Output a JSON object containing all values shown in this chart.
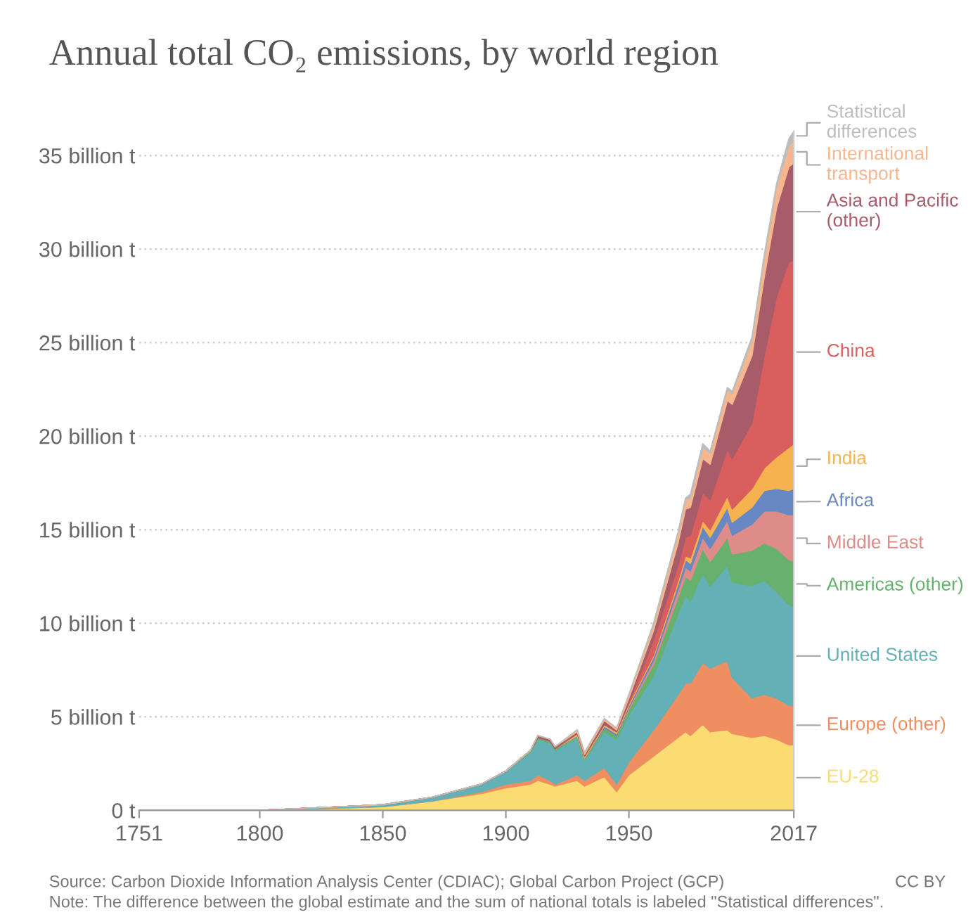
{
  "chart_data": {
    "type": "area",
    "stacked": true,
    "title": "Annual total CO₂ emissions, by world region",
    "x": [
      1751,
      1800,
      1850,
      1870,
      1890,
      1900,
      1910,
      1913,
      1918,
      1920,
      1929,
      1932,
      1940,
      1945,
      1950,
      1960,
      1970,
      1973,
      1975,
      1980,
      1983,
      1990,
      1992,
      2000,
      2005,
      2010,
      2015,
      2017
    ],
    "series": [
      {
        "name": "EU-28",
        "color": "#fbdc73",
        "values": [
          0,
          0,
          0.2,
          0.5,
          0.9,
          1.2,
          1.4,
          1.6,
          1.4,
          1.3,
          1.6,
          1.3,
          1.8,
          1.0,
          1.9,
          2.9,
          3.9,
          4.2,
          4.0,
          4.6,
          4.2,
          4.3,
          4.1,
          3.9,
          4.0,
          3.8,
          3.5,
          3.5
        ]
      },
      {
        "name": "Europe (other)",
        "color": "#ef8e60",
        "values": [
          0,
          0,
          0,
          0,
          0.1,
          0.2,
          0.2,
          0.3,
          0.2,
          0.1,
          0.3,
          0.3,
          0.5,
          0.4,
          0.7,
          1.4,
          2.3,
          2.6,
          2.8,
          3.3,
          3.4,
          3.7,
          3.0,
          2.1,
          2.2,
          2.2,
          2.1,
          2.1
        ]
      },
      {
        "name": "United States",
        "color": "#63b0b6",
        "values": [
          0,
          0,
          0.1,
          0.2,
          0.4,
          0.7,
          1.5,
          1.9,
          2.0,
          1.8,
          2.0,
          1.1,
          1.9,
          2.4,
          2.5,
          2.9,
          4.3,
          4.7,
          4.4,
          4.8,
          4.4,
          5.1,
          5.1,
          6.0,
          6.1,
          5.7,
          5.4,
          5.3
        ]
      },
      {
        "name": "Americas (other)",
        "color": "#66b16d",
        "values": [
          0,
          0,
          0,
          0,
          0,
          0,
          0.1,
          0.1,
          0.1,
          0.1,
          0.1,
          0.1,
          0.2,
          0.2,
          0.3,
          0.6,
          0.9,
          1.0,
          1.1,
          1.3,
          1.3,
          1.5,
          1.5,
          1.9,
          2.0,
          2.3,
          2.4,
          2.4
        ]
      },
      {
        "name": "Middle East",
        "color": "#de8c8a",
        "values": [
          0,
          0,
          0,
          0,
          0,
          0,
          0,
          0,
          0,
          0,
          0,
          0,
          0,
          0,
          0.1,
          0.2,
          0.4,
          0.5,
          0.5,
          0.6,
          0.7,
          0.9,
          1.0,
          1.4,
          1.7,
          2.0,
          2.4,
          2.5
        ]
      },
      {
        "name": "Africa",
        "color": "#6888c4",
        "values": [
          0,
          0,
          0,
          0,
          0,
          0,
          0,
          0,
          0,
          0,
          0,
          0,
          0.1,
          0.1,
          0.1,
          0.2,
          0.3,
          0.4,
          0.4,
          0.6,
          0.6,
          0.7,
          0.7,
          0.9,
          1.1,
          1.2,
          1.3,
          1.4
        ]
      },
      {
        "name": "India",
        "color": "#f5b24f",
        "values": [
          0,
          0,
          0,
          0,
          0,
          0,
          0,
          0,
          0,
          0,
          0.1,
          0.1,
          0.1,
          0.1,
          0.1,
          0.1,
          0.2,
          0.2,
          0.3,
          0.3,
          0.4,
          0.6,
          0.7,
          1.0,
          1.2,
          1.7,
          2.3,
          2.4
        ]
      },
      {
        "name": "China",
        "color": "#d95f5f",
        "values": [
          0,
          0,
          0,
          0,
          0,
          0,
          0,
          0,
          0,
          0,
          0,
          0,
          0,
          0,
          0.1,
          0.8,
          0.8,
          1.0,
          1.2,
          1.5,
          1.6,
          2.5,
          2.7,
          3.5,
          6.0,
          8.6,
          9.9,
          9.8
        ]
      },
      {
        "name": "Asia and Pacific (other)",
        "color": "#a85c69",
        "values": [
          0,
          0,
          0,
          0,
          0,
          0,
          0,
          0.1,
          0.1,
          0.1,
          0.1,
          0.1,
          0.2,
          0.1,
          0.2,
          0.5,
          1.2,
          1.5,
          1.5,
          1.8,
          1.9,
          2.6,
          2.9,
          3.6,
          4.2,
          4.7,
          5.1,
          5.2
        ]
      },
      {
        "name": "International transport",
        "color": "#f6b78e",
        "values": [
          0,
          0,
          0,
          0,
          0,
          0,
          0,
          0,
          0,
          0,
          0.1,
          0.1,
          0.1,
          0.1,
          0.2,
          0.3,
          0.5,
          0.5,
          0.5,
          0.6,
          0.6,
          0.6,
          0.6,
          0.8,
          1.0,
          1.1,
          1.1,
          1.2
        ]
      },
      {
        "name": "Statistical differences",
        "color": "#bdbdbd",
        "values": [
          0,
          0,
          0,
          0,
          0,
          0,
          0,
          0,
          0,
          0,
          0,
          0,
          0,
          0,
          0,
          0.1,
          0.1,
          0.1,
          0.2,
          0.2,
          0.1,
          0.1,
          0.1,
          0.2,
          0.2,
          0.2,
          0.4,
          0.5
        ]
      }
    ],
    "xlim": [
      1751,
      2017
    ],
    "ylim": [
      0,
      36.3
    ],
    "xticks": [
      1751,
      1800,
      1850,
      1900,
      1950,
      2017
    ],
    "yticks": [
      {
        "value": 0,
        "label": "0 t"
      },
      {
        "value": 5,
        "label": "5 billion t"
      },
      {
        "value": 10,
        "label": "10 billion t"
      },
      {
        "value": 15,
        "label": "15 billion t"
      },
      {
        "value": 20,
        "label": "20 billion t"
      },
      {
        "value": 25,
        "label": "25 billion t"
      },
      {
        "value": 30,
        "label": "30 billion t"
      },
      {
        "value": 35,
        "label": "35 billion t"
      }
    ],
    "grid": "y",
    "annotations": [
      "Source: Carbon Dioxide Information Analysis Center (CDIAC); Global Carbon Project (GCP)",
      "Note: The difference between the global estimate and the sum of national totals is labeled \"Statistical differences\".",
      "CC BY"
    ]
  }
}
